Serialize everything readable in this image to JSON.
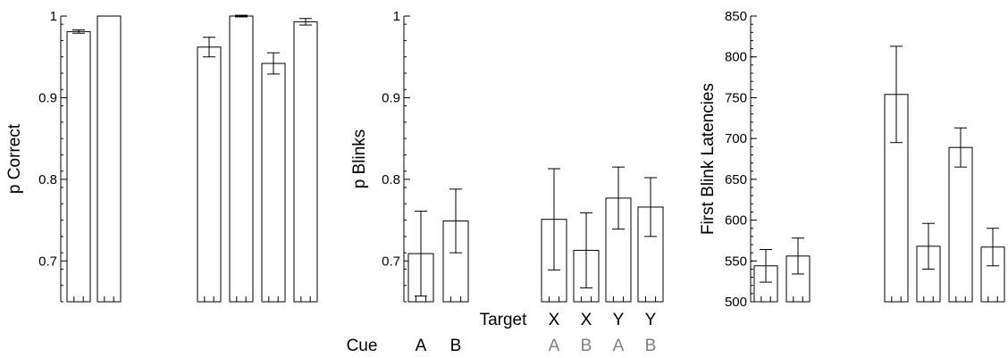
{
  "chart_data": [
    {
      "type": "bar",
      "ylabel": "p Correct",
      "ylim": [
        0.65,
        1.0
      ],
      "yticks": [
        0.7,
        0.8,
        0.9,
        1
      ],
      "ytick_labels": [
        "0.7",
        "0.8",
        "0.9",
        "1"
      ],
      "minor_ticks": true,
      "grid": false,
      "bars": [
        {
          "condition": "cue-A",
          "value": 0.981,
          "err": 0.002
        },
        {
          "condition": "cue-B",
          "value": 1.0,
          "err": 0.0
        },
        {
          "condition": "target-X-A",
          "value": 0.962,
          "err": 0.012
        },
        {
          "condition": "target-X-B",
          "value": 1.0,
          "err": 0.001
        },
        {
          "condition": "target-Y-A",
          "value": 0.942,
          "err": 0.013
        },
        {
          "condition": "target-Y-B",
          "value": 0.993,
          "err": 0.004
        }
      ]
    },
    {
      "type": "bar",
      "ylabel": "p Blinks",
      "ylim": [
        0.65,
        1.0
      ],
      "yticks": [
        0.7,
        0.8,
        0.9,
        1
      ],
      "ytick_labels": [
        "0.7",
        "0.8",
        "0.9",
        "1"
      ],
      "minor_ticks": true,
      "grid": false,
      "bars": [
        {
          "condition": "cue-A",
          "value": 0.709,
          "err": 0.052
        },
        {
          "condition": "cue-B",
          "value": 0.749,
          "err": 0.039
        },
        {
          "condition": "target-X-A",
          "value": 0.751,
          "err": 0.062
        },
        {
          "condition": "target-X-B",
          "value": 0.713,
          "err": 0.046
        },
        {
          "condition": "target-Y-A",
          "value": 0.777,
          "err": 0.038
        },
        {
          "condition": "target-Y-B",
          "value": 0.766,
          "err": 0.036
        }
      ],
      "condition_labels": {
        "cue_row_label": "Cue",
        "target_row_label": "Target",
        "cue_letters": [
          "A",
          "B"
        ],
        "target_letters": [
          "X",
          "X",
          "Y",
          "Y"
        ],
        "target_cue_letters": [
          "A",
          "B",
          "A",
          "B"
        ],
        "target_cue_color": "#808080"
      }
    },
    {
      "type": "bar",
      "ylabel": "First Blink Latencies",
      "ylim": [
        500,
        850
      ],
      "yticks": [
        500,
        550,
        600,
        650,
        700,
        750,
        800,
        850
      ],
      "ytick_labels": [
        "500",
        "550",
        "600",
        "650",
        "700",
        "750",
        "800",
        "850"
      ],
      "minor_ticks": true,
      "grid": false,
      "bars": [
        {
          "condition": "cue-A",
          "value": 544,
          "err": 20
        },
        {
          "condition": "cue-B",
          "value": 556,
          "err": 22
        },
        {
          "condition": "target-X-A",
          "value": 754,
          "err": 59
        },
        {
          "condition": "target-X-B",
          "value": 568,
          "err": 28
        },
        {
          "condition": "target-Y-A",
          "value": 689,
          "err": 24
        },
        {
          "condition": "target-Y-B",
          "value": 567,
          "err": 23
        }
      ]
    }
  ]
}
